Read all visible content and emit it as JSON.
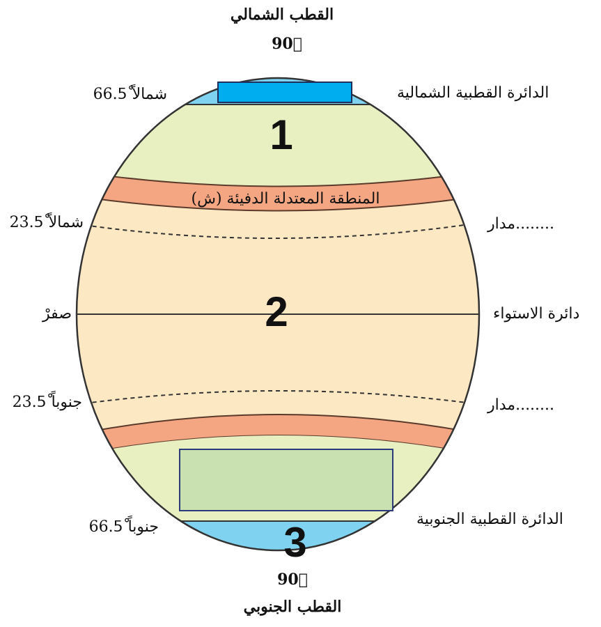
{
  "north_pole": {
    "name": "القطب الشمالي",
    "degree": "90ْ"
  },
  "south_pole": {
    "name": "القطب الجنوبي",
    "degree": "90ْ"
  },
  "lines": [
    {
      "left": "66.5ْ شمالاً",
      "right": "الدائرة القطبية الشمالية"
    },
    {
      "left": "23.5ْ شمالاً",
      "right": "مدار........"
    },
    {
      "left": "صفرْ",
      "right": "دائرة الاستواء"
    },
    {
      "left": "23.5ْ جنوباً",
      "right": "مدار........"
    },
    {
      "left": "66.5ْ جنوباً",
      "right": "الدائرة القطبية الجنوبية"
    }
  ],
  "zones": [
    "1",
    "2",
    "3"
  ],
  "band_label": "المنطقة المعتدلة الدفيئة (ش)"
}
